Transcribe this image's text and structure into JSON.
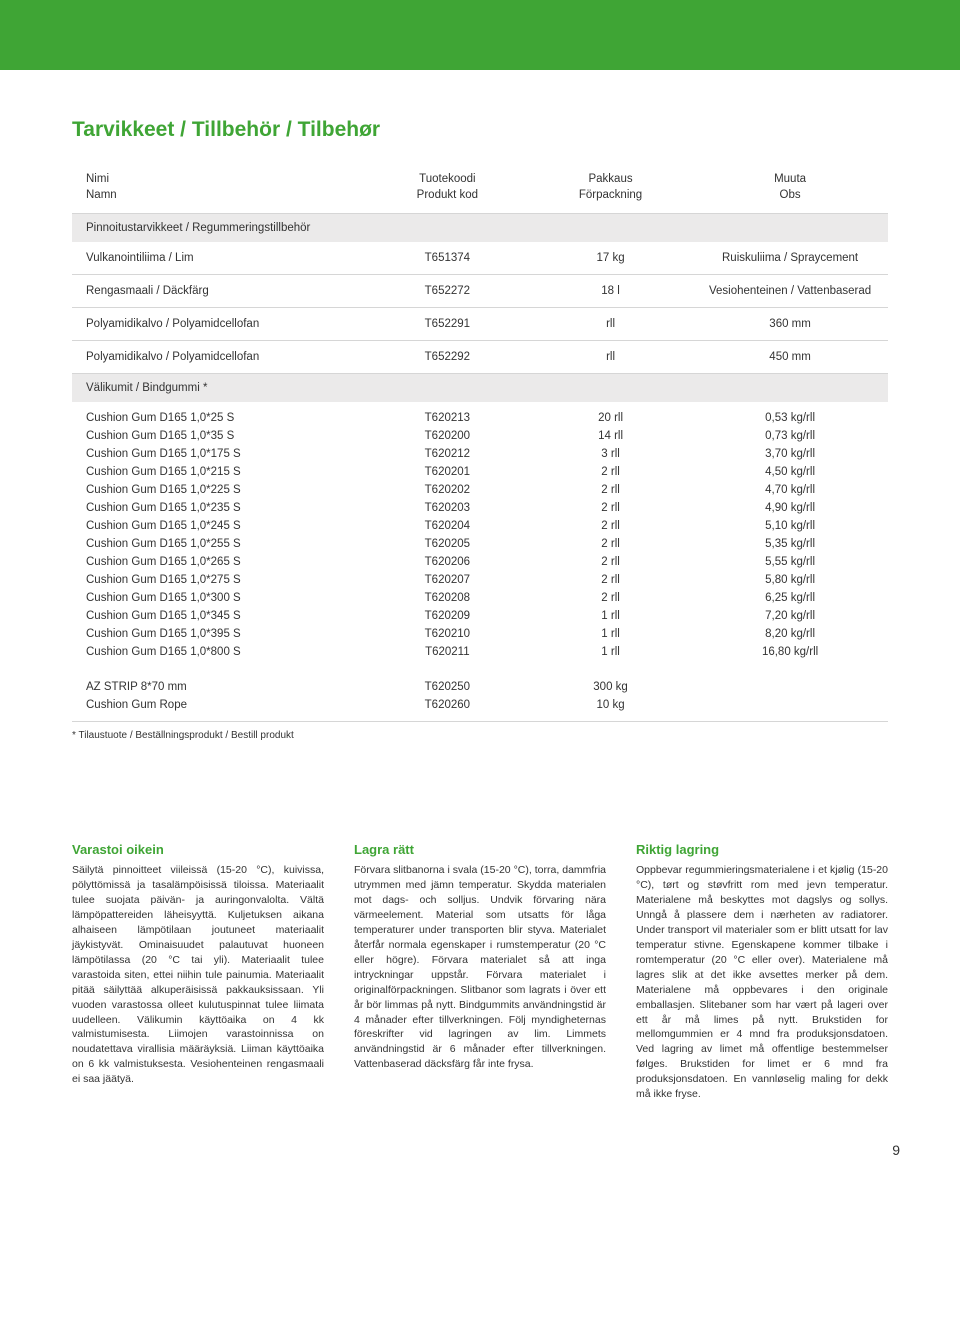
{
  "colors": {
    "accent": "#3fa535",
    "section_bg": "#ebeaea",
    "rule": "#d6d6d6",
    "text": "#333333"
  },
  "title": "Tarvikkeet / Tillbehör / Tilbehør",
  "table_head": {
    "name_l1": "Nimi",
    "name_l2": "Namn",
    "code_l1": "Tuotekoodi",
    "code_l2": "Produkt kod",
    "pack_l1": "Pakkaus",
    "pack_l2": "Förpackning",
    "other_l1": "Muuta",
    "other_l2": "Obs"
  },
  "section1": "Pinnoitustarvikkeet / Regummeringstillbehör",
  "rows1": [
    {
      "name": "Vulkanointiliima / Lim",
      "code": "T651374",
      "pack": "17 kg",
      "other": "Ruiskuliima / Spraycement"
    },
    {
      "name": "Rengasmaali / Däckfärg",
      "code": "T652272",
      "pack": "18 l",
      "other": "Vesiohenteinen / Vattenbaserad"
    },
    {
      "name": "Polyamidikalvo / Polyamidcellofan",
      "code": "T652291",
      "pack": "rll",
      "other": "360 mm"
    },
    {
      "name": "Polyamidikalvo / Polyamidcellofan",
      "code": "T652292",
      "pack": "rll",
      "other": "450 mm"
    }
  ],
  "section2": "Välikumit / Bindgummi *",
  "rows2": [
    {
      "name": "Cushion Gum D165 1,0*25 S",
      "code": "T620213",
      "pack": "20 rll",
      "other": "0,53 kg/rll"
    },
    {
      "name": "Cushion Gum D165 1,0*35 S",
      "code": "T620200",
      "pack": "14 rll",
      "other": "0,73 kg/rll"
    },
    {
      "name": "Cushion Gum D165 1,0*175 S",
      "code": "T620212",
      "pack": "3 rll",
      "other": "3,70 kg/rll"
    },
    {
      "name": "Cushion Gum D165 1,0*215 S",
      "code": "T620201",
      "pack": "2 rll",
      "other": "4,50 kg/rll"
    },
    {
      "name": "Cushion Gum D165 1,0*225 S",
      "code": "T620202",
      "pack": "2 rll",
      "other": "4,70 kg/rll"
    },
    {
      "name": "Cushion Gum D165 1,0*235 S",
      "code": "T620203",
      "pack": "2 rll",
      "other": "4,90 kg/rll"
    },
    {
      "name": "Cushion Gum D165 1,0*245 S",
      "code": "T620204",
      "pack": "2 rll",
      "other": "5,10 kg/rll"
    },
    {
      "name": "Cushion Gum D165 1,0*255 S",
      "code": "T620205",
      "pack": "2 rll",
      "other": "5,35 kg/rll"
    },
    {
      "name": "Cushion Gum D165 1,0*265 S",
      "code": "T620206",
      "pack": "2 rll",
      "other": "5,55 kg/rll"
    },
    {
      "name": "Cushion Gum D165 1,0*275 S",
      "code": "T620207",
      "pack": "2 rll",
      "other": "5,80 kg/rll"
    },
    {
      "name": "Cushion Gum D165 1,0*300 S",
      "code": "T620208",
      "pack": "2 rll",
      "other": "6,25 kg/rll"
    },
    {
      "name": "Cushion Gum D165 1,0*345 S",
      "code": "T620209",
      "pack": "1 rll",
      "other": "7,20 kg/rll"
    },
    {
      "name": "Cushion Gum D165 1,0*395 S",
      "code": "T620210",
      "pack": "1 rll",
      "other": "8,20 kg/rll"
    },
    {
      "name": "Cushion Gum D165 1,0*800 S",
      "code": "T620211",
      "pack": "1 rll",
      "other": "16,80 kg/rll"
    }
  ],
  "rows3": [
    {
      "name": "AZ STRIP 8*70 mm",
      "code": "T620250",
      "pack": "300 kg",
      "other": ""
    },
    {
      "name": "Cushion Gum Rope",
      "code": "T620260",
      "pack": "10 kg",
      "other": ""
    }
  ],
  "footnote": "* Tilaustuote / Beställningsprodukt / Bestill produkt",
  "storage": [
    {
      "heading": "Varastoi oikein",
      "body": "Säilytä pinnoitteet viileissä (15-20 °C), kuivissa, pölyttömissä ja tasalämpöisissä tiloissa. Materiaalit tulee suojata päivän- ja auringonvalolta. Vältä lämpöpattereiden läheisyyttä. Kuljetuksen aikana alhaiseen lämpötilaan joutuneet materiaalit jäykistyvät. Ominaisuudet palautuvat huoneen lämpötilassa (20 °C tai yli). Materiaalit tulee varastoida siten, ettei niihin tule painumia. Materiaalit pitää säilyttää alkuperäisissä pakkauksissaan. Yli vuoden varastossa olleet kulutuspinnat tulee liimata uudelleen. Välikumin käyttöaika on 4 kk valmistumisesta. Liimojen varastoinnissa on noudatettava virallisia määräyksiä. Liiman käyttöaika on 6 kk valmistuksesta. Vesiohenteinen rengasmaali ei saa jäätyä."
    },
    {
      "heading": "Lagra rätt",
      "body": "Förvara slitbanorna i svala (15-20 °C), torra, dammfria utrymmen med jämn temperatur. Skydda materialen mot dags- och solljus. Undvik förvaring nära värmeelement. Material som utsatts för låga temperaturer under transporten blir styva. Materialet återfår normala egenskaper i rumstemperatur (20 °C eller högre). Förvara materialet så att inga intryckningar uppstår. Förvara materialet i originalförpackningen. Slitbanor som lagrats i över ett år bör limmas på nytt. Bindgummits användningstid är 4 månader efter tillverkningen. Följ myndigheternas föreskrifter vid lagringen av lim. Limmets användningstid är 6 månader efter tillverkningen. Vattenbaserad däcksfärg får inte frysa."
    },
    {
      "heading": "Riktig lagring",
      "body": "Oppbevar regummieringsmaterialene i et kjølig (15-20 °C), tørt og støvfritt rom med jevn temperatur. Materialene må beskyttes mot dagslys og sollys. Unngå å plassere dem i nærheten av radiatorer. Under transport vil materialer som er blitt utsatt for lav temperatur stivne. Egenskapene kommer tilbake i romtemperatur (20 °C eller over). Materialene må lagres slik at det ikke avsettes merker på dem. Materialene må oppbevares i den originale emballasjen. Slitebaner som har vært på lageri over ett år må limes på nytt. Brukstiden for mellomgummien er 4 mnd fra produksjonsdatoen. Ved lagring av limet må offentlige bestemmelser følges. Brukstiden for limet er 6 mnd fra produksjonsdatoen. En vannløselig maling for dekk må ikke fryse."
    }
  ],
  "page_number": "9"
}
